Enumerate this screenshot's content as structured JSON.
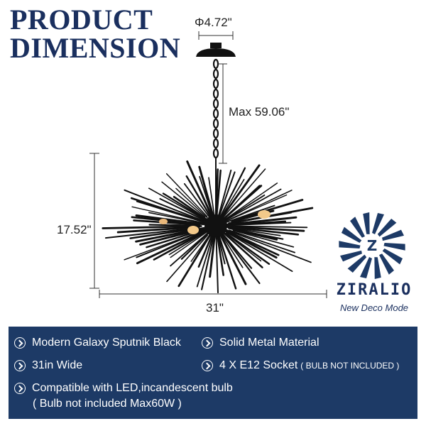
{
  "header": {
    "title_line1": "PRODUCT",
    "title_line2": "DIMENSION"
  },
  "dimensions": {
    "canopy_diameter": "Φ4.72\"",
    "chain_length": "Max 59.06\"",
    "height": "17.52\"",
    "width": "31\""
  },
  "brand": {
    "name": "ZIRALIO",
    "tagline": "New Deco Mode",
    "logo_icon": "ziralio-pinwheel-logo"
  },
  "features": {
    "items": [
      {
        "icon": "chevron-circle-icon",
        "text": "Modern Galaxy Sputnik Black"
      },
      {
        "icon": "chevron-circle-icon",
        "text": "Solid Metal Material"
      },
      {
        "icon": "chevron-circle-icon",
        "text": "31in Wide"
      },
      {
        "icon": "chevron-circle-icon",
        "text": "4 X E12 Socket",
        "note": "( BULB NOT INCLUDED )"
      },
      {
        "icon": "chevron-circle-icon",
        "text": "Compatible with LED,incandescent bulb",
        "subtext": "( Bulb not included Max60W )"
      }
    ]
  },
  "colors": {
    "navy": "#1d3a66",
    "title_navy": "#1a2f5e",
    "fixture_black": "#111111",
    "bulb_glow": "#f3c98a"
  }
}
